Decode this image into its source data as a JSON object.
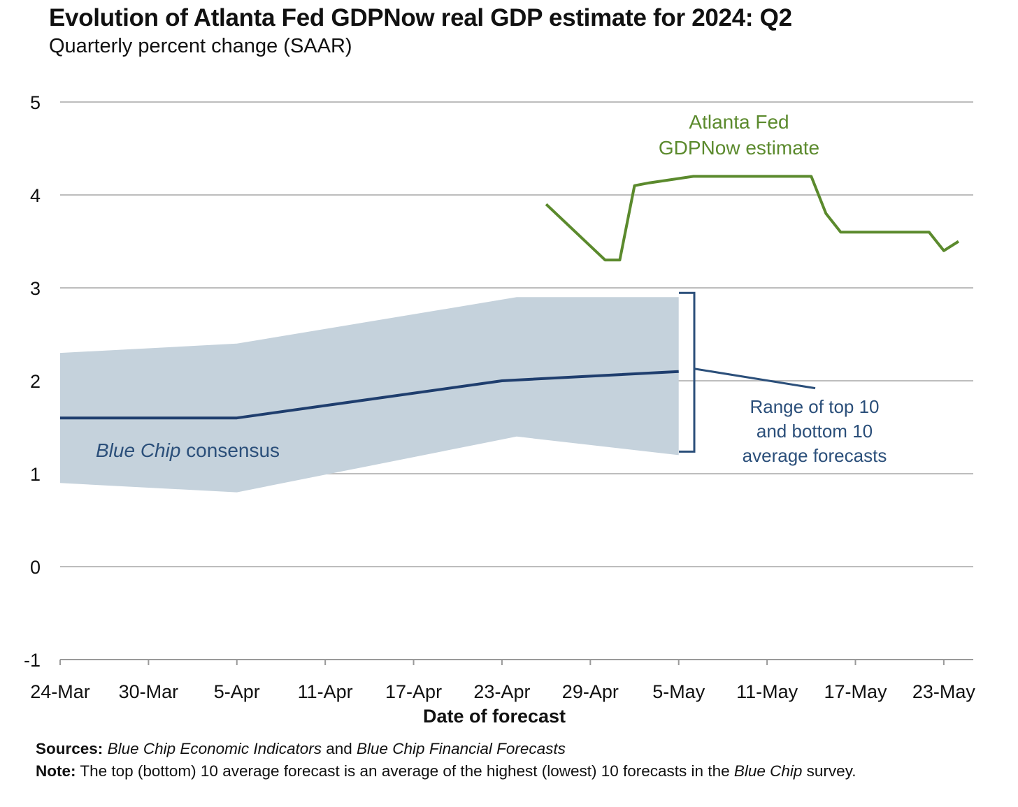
{
  "title": "Evolution of Atlanta Fed GDPNow real GDP estimate for 2024: Q2",
  "subtitle": "Quarterly percent change (SAAR)",
  "chart_data": {
    "type": "line",
    "title": "Evolution of Atlanta Fed GDPNow real GDP estimate for 2024: Q2",
    "subtitle": "Quarterly percent change (SAAR)",
    "xlabel": "Date of forecast",
    "ylabel": "",
    "ylim": [
      -1,
      5
    ],
    "yticks": [
      -1,
      0,
      1,
      2,
      3,
      4,
      5
    ],
    "xtick_labels": [
      "24-Mar",
      "30-Mar",
      "5-Apr",
      "11-Apr",
      "17-Apr",
      "23-Apr",
      "29-Apr",
      "5-May",
      "11-May",
      "17-May",
      "23-May"
    ],
    "xrange": [
      "24-Mar",
      "25-May"
    ],
    "grid": true,
    "colors": {
      "gdpnow": "#5b8a2d",
      "consensus": "#1f3e6e",
      "band": "#c5d2dc",
      "grid": "#bdbdbd",
      "annotation": "#2b4f7a"
    },
    "series": [
      {
        "name": "Atlanta Fed GDPNow estimate",
        "x": [
          "26-Apr",
          "30-Apr",
          "1-May",
          "2-May",
          "3-May",
          "6-May",
          "8-May",
          "14-May",
          "15-May",
          "16-May",
          "22-May",
          "23-May",
          "24-May"
        ],
        "values": [
          3.9,
          3.3,
          3.3,
          4.1,
          4.13,
          4.2,
          4.2,
          4.2,
          3.8,
          3.6,
          3.6,
          3.4,
          3.5
        ]
      },
      {
        "name": "Blue Chip consensus",
        "x": [
          "24-Mar",
          "5-Apr",
          "23-Apr",
          "5-May"
        ],
        "values": [
          1.6,
          1.6,
          2.0,
          2.1
        ]
      }
    ],
    "band": {
      "name": "Range of top 10 and bottom 10 average forecasts",
      "x": [
        "24-Mar",
        "5-Apr",
        "24-Apr",
        "5-May"
      ],
      "upper": [
        2.3,
        2.4,
        2.9,
        2.9
      ],
      "lower": [
        0.9,
        0.8,
        1.4,
        1.2
      ]
    },
    "annotations": {
      "gdpnow_line1": "Atlanta Fed",
      "gdpnow_line2": "GDPNow estimate",
      "consensus_italic": "Blue Chip",
      "consensus_rest": " consensus",
      "range_line1": "Range of top 10",
      "range_line2": "and bottom 10",
      "range_line3": "average forecasts"
    }
  },
  "notes": {
    "sources_label": "Sources:",
    "sources_part1": "Blue Chip Economic Indicators",
    "sources_and": " and ",
    "sources_part2": "Blue Chip Financial Forecasts",
    "note_label": "Note:",
    "note_text": " The top (bottom) 10 average forecast is an average of the highest (lowest) 10 forecasts in the ",
    "note_italic": "Blue Chip",
    "note_end": " survey."
  }
}
